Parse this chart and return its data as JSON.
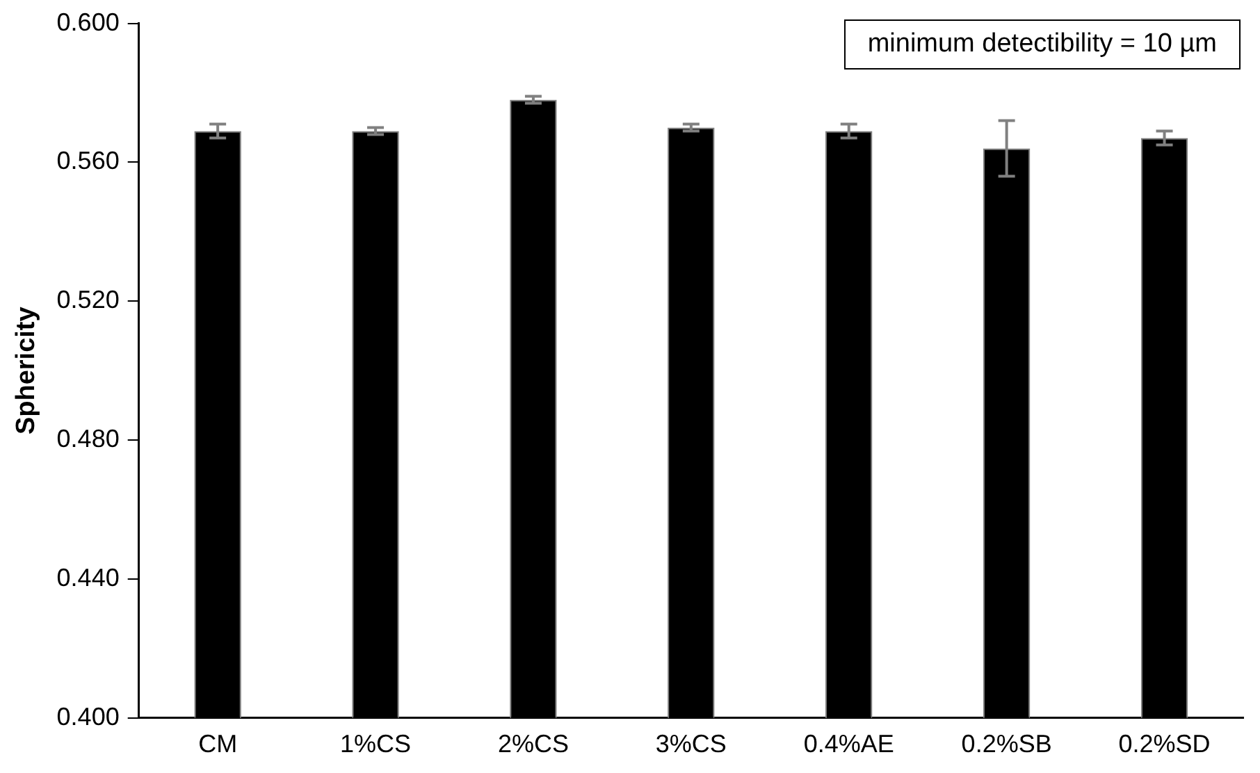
{
  "chart_data": {
    "type": "bar",
    "ylabel": "Sphericity",
    "categories": [
      "CM",
      "1%CS",
      "2%CS",
      "3%CS",
      "0.4%AE",
      "0.2%SB",
      "0.2%SD"
    ],
    "values": [
      0.569,
      0.569,
      0.578,
      0.57,
      0.569,
      0.564,
      0.567
    ],
    "errors": [
      0.002,
      0.001,
      0.001,
      0.001,
      0.002,
      0.008,
      0.002
    ],
    "color": "#000000",
    "ylim": [
      0.4,
      0.6
    ],
    "yticks": [
      {
        "value": 0.4,
        "label": "0.400"
      },
      {
        "value": 0.44,
        "label": "0.440"
      },
      {
        "value": 0.48,
        "label": "0.480"
      },
      {
        "value": 0.52,
        "label": "0.520"
      },
      {
        "value": 0.56,
        "label": "0.560"
      },
      {
        "value": 0.6,
        "label": "0.600"
      }
    ],
    "annotations": [
      "minimum detectibility = 10 µm"
    ],
    "grid": false,
    "legend": false
  }
}
